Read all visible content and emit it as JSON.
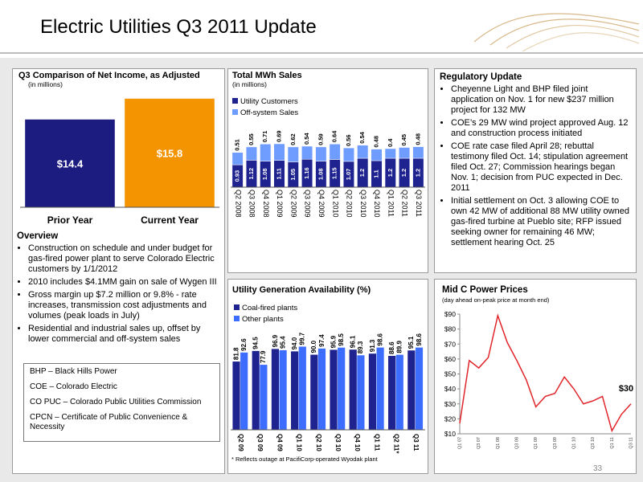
{
  "title": "Electric Utilities Q3 2011 Update",
  "page_number": "33",
  "overview": {
    "heading": "Overview",
    "bullets": [
      "Construction on schedule and under budget for gas-fired power plant to serve Colorado Electric customers by 1/1/2012",
      "2010 includes $4.1MM gain on sale of Wygen III",
      "Gross margin up $7.2 million or 9.8% - rate increases, transmission cost adjustments and volumes (peak loads in July)",
      "Residential and industrial sales up, offset by lower commercial and off-system sales"
    ]
  },
  "glossary": [
    "BHP – Black Hills Power",
    "COE – Colorado Electric",
    "CO PUC – Colorado Public Utilities Commission",
    "CPCN – Certificate of Public Convenience & Necessity"
  ],
  "regulatory": {
    "heading": "Regulatory Update",
    "bullets": [
      "Cheyenne Light and BHP filed joint application on Nov. 1 for new $237 million project for 132 MW",
      "COE’s 29 MW wind project approved Aug. 12 and construction process initiated",
      "COE rate case filed April 28; rebuttal testimony filed Oct. 14; stipulation agreement filed Oct. 27; Commission hearings began Nov. 1; decision from PUC expected in Dec. 2011",
      "Initial settlement on Oct. 3 allowing COE to own 42 MW of additional 88 MW utility owned gas-fired turbine at Pueblo site; RFP issued seeking owner for remaining 46 MW; settlement hearing Oct. 25"
    ]
  },
  "chart_data": [
    {
      "type": "bar",
      "title": "Q3 Comparison of Net Income, as Adjusted",
      "subtitle": "(in millions)",
      "categories": [
        "Prior Year",
        "Current Year"
      ],
      "values": [
        14.4,
        15.8
      ],
      "value_labels": [
        "$14.4",
        "$15.8"
      ],
      "colors": [
        "#1c1c80",
        "#f39400"
      ],
      "ylim": [
        8.5,
        16.6
      ]
    },
    {
      "type": "stacked_bar",
      "title": "Total MWh Sales",
      "subtitle": "(in millions)",
      "categories": [
        "Q2 2008",
        "Q3 2008",
        "Q4 2008",
        "Q1 2009",
        "Q2 2009",
        "Q3 2009",
        "Q4 2009",
        "Q1 2010",
        "Q2 2010",
        "Q3 2010",
        "Q4 2010",
        "Q1 2011",
        "Q2 2011",
        "Q3 2011"
      ],
      "series": [
        {
          "name": "Utility Customers",
          "color": "#1f2390",
          "values": [
            0.93,
            1.12,
            1.08,
            1.11,
            1.05,
            1.16,
            1.08,
            1.15,
            1.07,
            1.2,
            1.1,
            1.2,
            1.2,
            1.2
          ]
        },
        {
          "name": "Off-system Sales",
          "color": "#6f9cff",
          "values": [
            0.51,
            0.55,
            0.71,
            0.69,
            0.62,
            0.54,
            0.59,
            0.64,
            0.56,
            0.54,
            0.48,
            0.4,
            0.45,
            0.48
          ]
        }
      ],
      "ylim": [
        0,
        2.6
      ]
    },
    {
      "type": "grouped_bar",
      "title": "Utility Generation Availability (%)",
      "categories": [
        "Q2 09",
        "Q3 09",
        "Q4 09",
        "Q1 10",
        "Q2 10",
        "Q3 10",
        "Q4 10",
        "Q1 11",
        "Q2 11*",
        "Q3 11"
      ],
      "series": [
        {
          "name": "Coal-fired plants",
          "color": "#1f2390",
          "values": [
            81.8,
            94.5,
            96.9,
            94.0,
            90.0,
            95.9,
            96.1,
            91.3,
            88.6,
            95.1
          ],
          "value_labels": [
            "81.8",
            "94.5",
            "96.9",
            "94.0",
            "90.0",
            "95.9",
            "96.1",
            "91.3",
            "88.6",
            "95.1"
          ]
        },
        {
          "name": "Other plants",
          "color": "#3d6dff",
          "values": [
            92.6,
            77.9,
            95.4,
            99.7,
            97.4,
            98.5,
            89.3,
            98.6,
            89.9,
            98.6
          ],
          "value_labels": [
            "92.6",
            "77.9",
            "95.4",
            "99.7",
            "97.4",
            "98.5",
            "89.3",
            "98.6",
            "89.9",
            "98.6"
          ]
        }
      ],
      "ylim": [
        0,
        130
      ],
      "footnote": "* Reflects outage at PacifiCorp-operated Wyodak plant"
    },
    {
      "type": "line",
      "title": "Mid C Power Prices",
      "subtitle": "(day ahead on-peak price at month end)",
      "categories": [
        "Q1 07",
        null,
        "Q3 07",
        null,
        "Q1 08",
        null,
        "Q3 08",
        null,
        "Q1 09",
        null,
        "Q3 09",
        null,
        "Q1 10",
        null,
        "Q3 10",
        null,
        "Q1 11",
        null,
        "Q3 11"
      ],
      "values": [
        17,
        59,
        54,
        61,
        89,
        71,
        59,
        46,
        28,
        35,
        37,
        48,
        40,
        30,
        32,
        35,
        12,
        23,
        30
      ],
      "color": "#e0262b",
      "ylim": [
        10,
        90
      ],
      "yticks": [
        {
          "value": 10,
          "label": "$10"
        },
        {
          "value": 20,
          "label": "$20"
        },
        {
          "value": 30,
          "label": "$30"
        },
        {
          "value": 40,
          "label": "$40"
        },
        {
          "value": 50,
          "label": "$50"
        },
        {
          "value": 60,
          "label": "$60"
        },
        {
          "value": 70,
          "label": "$70"
        },
        {
          "value": 80,
          "label": "$80"
        },
        {
          "value": 90,
          "label": "$90"
        }
      ],
      "annotation": "$30"
    }
  ]
}
